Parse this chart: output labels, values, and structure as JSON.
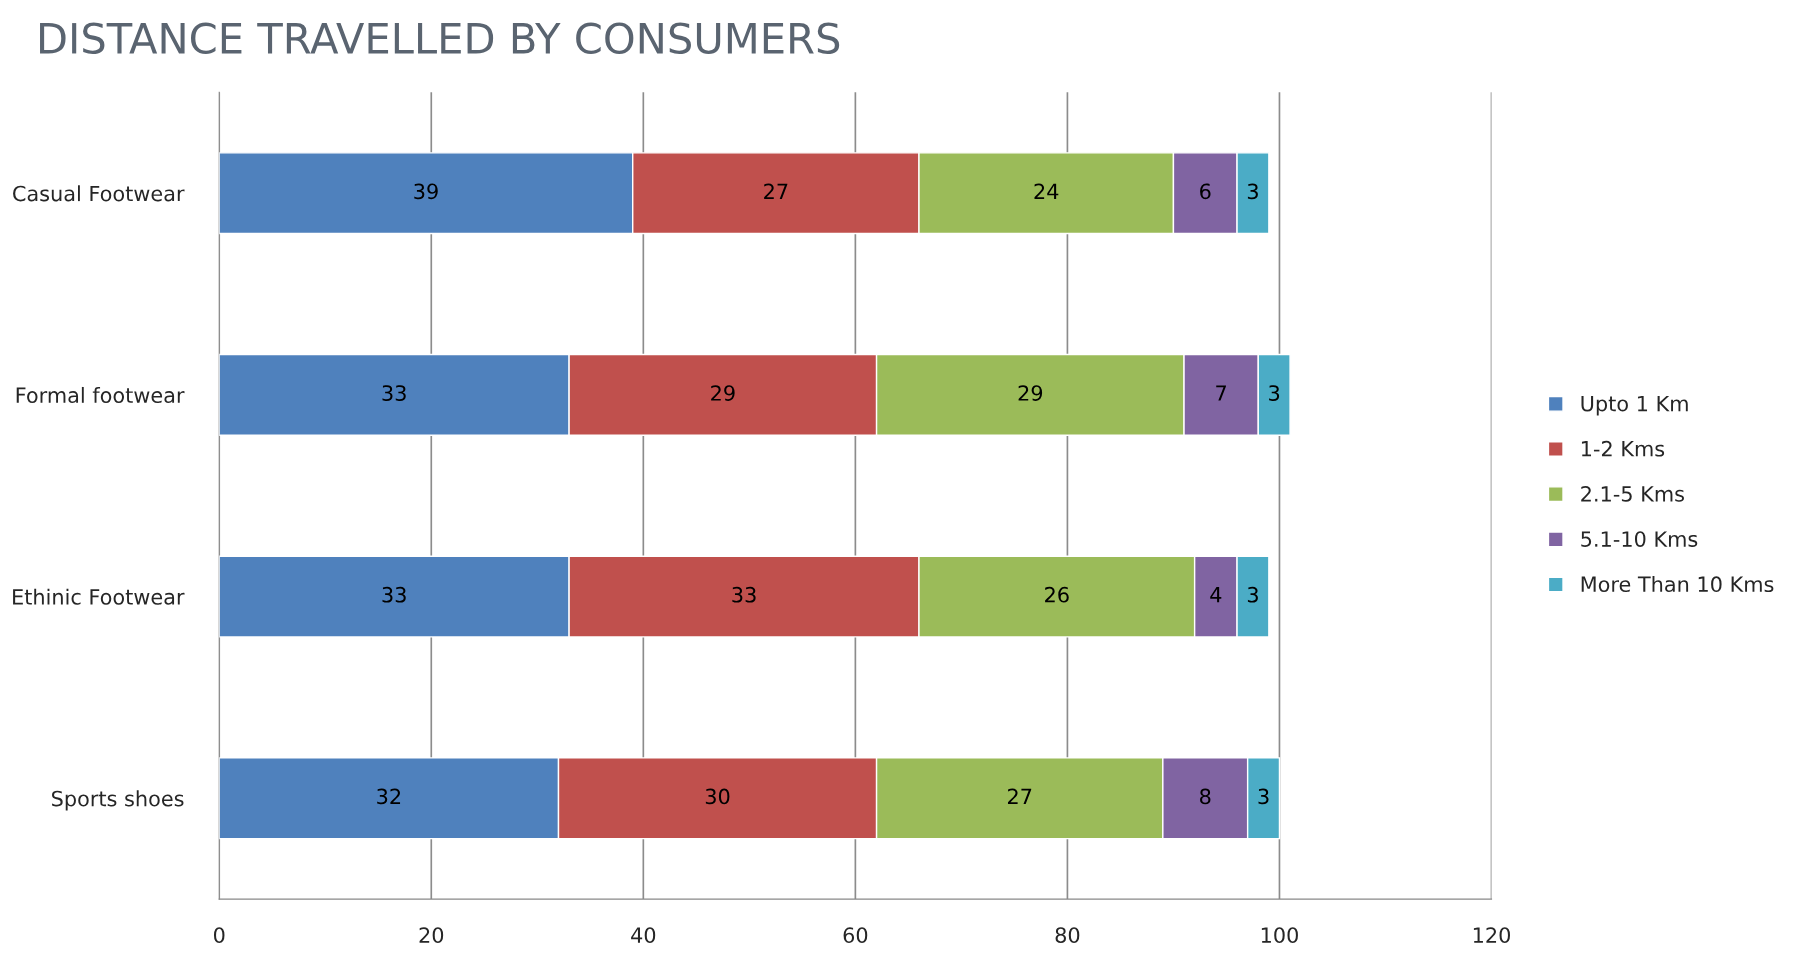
{
  "chart_data": {
    "type": "bar",
    "title": "DISTANCE TRAVELLED BY CONSUMERS",
    "orientation": "horizontal",
    "stacked": true,
    "categories": [
      "Casual Footwear",
      "Formal footwear",
      "Ethinic Footwear",
      "Sports shoes"
    ],
    "series": [
      {
        "name": "Upto 1 Km",
        "color": "#4f81bd",
        "values": [
          39,
          33,
          33,
          32
        ]
      },
      {
        "name": "1-2 Kms",
        "color": "#c0504d",
        "values": [
          27,
          29,
          33,
          30
        ]
      },
      {
        "name": "2.1-5 Kms",
        "color": "#9bbb59",
        "values": [
          24,
          29,
          26,
          27
        ]
      },
      {
        "name": "5.1-10 Kms",
        "color": "#8064a2",
        "values": [
          6,
          7,
          4,
          8
        ]
      },
      {
        "name": "More Than 10 Kms",
        "color": "#4bacc6",
        "values": [
          3,
          3,
          3,
          3
        ]
      }
    ],
    "xlim": [
      0,
      120
    ],
    "xticks": [
      0,
      20,
      40,
      60,
      80,
      100,
      120
    ],
    "grid": "x",
    "legend": "right",
    "data_labels": true
  }
}
